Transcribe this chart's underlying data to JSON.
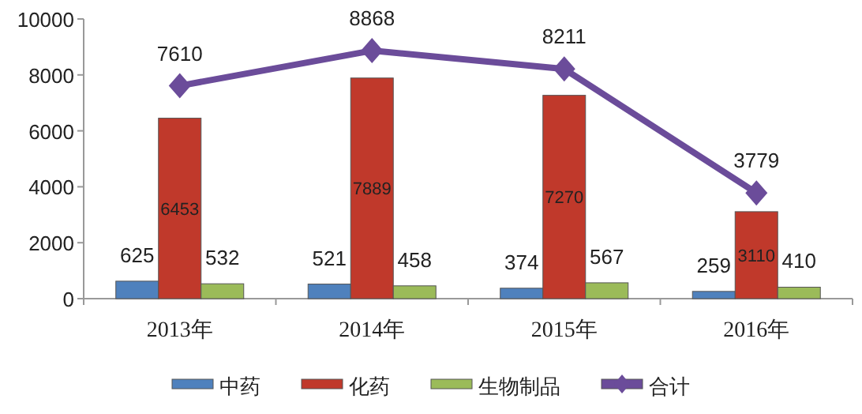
{
  "chart_data": {
    "type": "bar",
    "categories": [
      "2013年",
      "2014年",
      "2015年",
      "2016年"
    ],
    "series": [
      {
        "name": "中药",
        "color": "#4f81bd",
        "values": [
          625,
          521,
          374,
          259
        ]
      },
      {
        "name": "化药",
        "color": "#c0392b",
        "values": [
          6453,
          7889,
          7270,
          3110
        ]
      },
      {
        "name": "生物制品",
        "color": "#9bbb59",
        "values": [
          532,
          458,
          567,
          410
        ]
      },
      {
        "name": "合计",
        "type": "line",
        "marker": "diamond",
        "color": "#6b4c9a",
        "values": [
          7610,
          8868,
          8211,
          3779
        ]
      }
    ],
    "ylim": [
      0,
      10000
    ],
    "yticks": [
      0,
      2000,
      4000,
      6000,
      8000,
      10000
    ],
    "data_labels": true,
    "legend": "bottom",
    "grid": false
  }
}
